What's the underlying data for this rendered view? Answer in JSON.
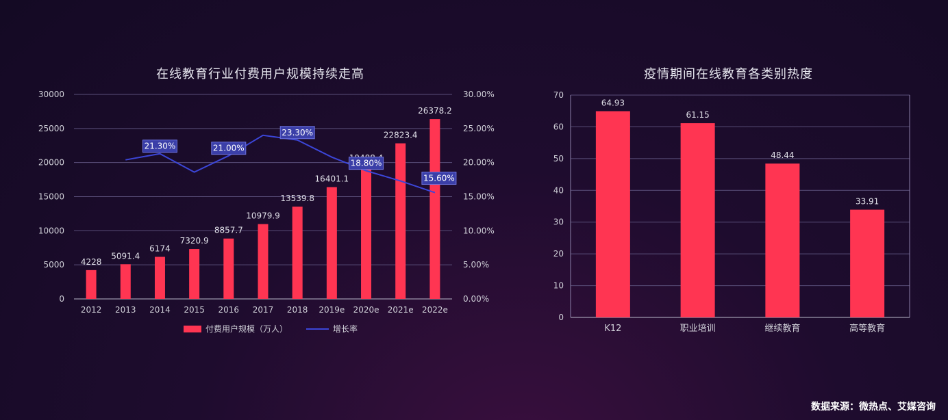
{
  "footer": {
    "source": "数据来源：微热点、艾媒咨询"
  },
  "chart_data": [
    {
      "type": "bar",
      "title": "在线教育行业付费用户规模持续走高",
      "categories": [
        "2012",
        "2013",
        "2014",
        "2015",
        "2016",
        "2017",
        "2018",
        "2019e",
        "2020e",
        "2021e",
        "2022e"
      ],
      "series": [
        {
          "name": "付费用户规模（万人）",
          "type": "bar",
          "axis": "left",
          "values": [
            4228,
            5091.4,
            6174,
            7320.9,
            8857.7,
            10979.9,
            13539.8,
            16401.1,
            19488.4,
            22823.4,
            26378.2
          ],
          "labels": [
            "4228",
            "5091.4",
            "6174",
            "7320.9",
            "8857.7",
            "10979.9",
            "13539.8",
            "16401.1",
            "19488.4",
            "22823.4",
            "26378.2"
          ],
          "color": "#ff3552"
        },
        {
          "name": "增长率",
          "type": "line",
          "axis": "right",
          "values": [
            null,
            20.4,
            21.3,
            18.6,
            21.0,
            24.0,
            23.3,
            20.8,
            18.8,
            17.3,
            15.6
          ],
          "labels": {
            "2": "21.30%",
            "4": "21.00%",
            "6": "23.30%",
            "8": "18.80%",
            "10": "15.60%"
          },
          "color": "#3c46d8"
        }
      ],
      "y_left": {
        "min": 0,
        "max": 30000,
        "ticks": [
          "0",
          "5000",
          "10000",
          "15000",
          "20000",
          "25000",
          "30000"
        ]
      },
      "y_right": {
        "min": 0,
        "max": 30,
        "ticks": [
          "0.00%",
          "5.00%",
          "10.00%",
          "15.00%",
          "20.00%",
          "25.00%",
          "30.00%"
        ]
      },
      "legend": "bottom",
      "grid": true
    },
    {
      "type": "bar",
      "title": "疫情期间在线教育各类别热度",
      "categories": [
        "K12",
        "职业培训",
        "继续教育",
        "高等教育"
      ],
      "values": [
        64.93,
        61.15,
        48.44,
        33.91
      ],
      "labels": [
        "64.93",
        "61.15",
        "48.44",
        "33.91"
      ],
      "ylim": [
        0,
        70
      ],
      "yticks": [
        "0",
        "10",
        "20",
        "30",
        "40",
        "50",
        "60",
        "70"
      ],
      "color": "#ff3552",
      "grid": true
    }
  ]
}
